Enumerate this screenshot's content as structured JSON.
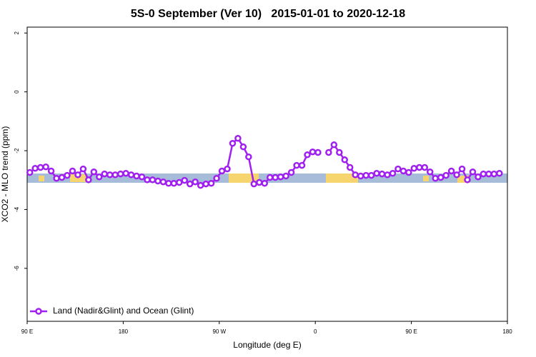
{
  "chart_data": {
    "type": "line",
    "title": "5S-0 September (Ver 10)   2015-01-01 to 2020-12-18",
    "x_label": "Longitude (deg E)",
    "y_label": "XCO2 - MLO trend (ppm)",
    "x": [
      92.5,
      97.5,
      102.5,
      107.5,
      112.5,
      117.5,
      122.5,
      127.5,
      132.5,
      137.5,
      142.5,
      147.5,
      152.5,
      157.5,
      162.5,
      167.5,
      172.5,
      177.5,
      182.5,
      187.5,
      192.5,
      197.5,
      202.5,
      207.5,
      212.5,
      217.5,
      222.5,
      227.5,
      232.5,
      237.5,
      242.5,
      247.5,
      252.5,
      257.5,
      262.5,
      267.5,
      272.5,
      277.5,
      282.5,
      287.5,
      292.5,
      297.5,
      302.5,
      307.5,
      312.5,
      317.5,
      322.5,
      327.5,
      332.5,
      337.5,
      342.5,
      347.5,
      352.5,
      357.5,
      362.5,
      367.5,
      372.5,
      377.5,
      382.5,
      387.5,
      392.5,
      397.5,
      402.5,
      407.5,
      412.5,
      417.5,
      422.5,
      427.5,
      432.5,
      437.5,
      442.5,
      447.5,
      452.5,
      457.5,
      462.5,
      467.5,
      472.5,
      477.5,
      482.5,
      487.5,
      492.5,
      497.5,
      502.5,
      507.5,
      512.5,
      517.5,
      522.5,
      527.5,
      532.5
    ],
    "series": [
      {
        "name": "Land (Nadir&Glint) and Ocean (Glint)",
        "color": "#a020f0",
        "values": [
          -2.74,
          -2.6,
          -2.57,
          -2.55,
          -2.69,
          -2.94,
          -2.91,
          -2.84,
          -2.69,
          -2.82,
          -2.62,
          -2.99,
          -2.72,
          -2.89,
          -2.79,
          -2.82,
          -2.82,
          -2.79,
          -2.77,
          -2.82,
          -2.86,
          -2.89,
          -2.99,
          -2.99,
          -3.03,
          -3.06,
          -3.11,
          -3.11,
          -3.08,
          -3.01,
          -3.13,
          -3.06,
          -3.18,
          -3.13,
          -3.11,
          -2.94,
          -2.69,
          -2.62,
          -1.75,
          -1.58,
          -1.87,
          -2.21,
          -3.13,
          -3.08,
          -3.11,
          -2.91,
          -2.91,
          -2.89,
          -2.86,
          -2.74,
          -2.5,
          -2.5,
          -2.14,
          -2.04,
          -2.06,
          null,
          -2.06,
          -1.8,
          -2.06,
          -2.31,
          -2.57,
          -2.82,
          -2.86,
          -2.84,
          -2.84,
          -2.77,
          -2.79,
          -2.82,
          -2.77,
          -2.62,
          -2.69,
          -2.74,
          -2.6,
          -2.57,
          -2.57,
          -2.72,
          -2.94,
          -2.91,
          -2.84,
          -2.69,
          -2.82,
          -2.62,
          -2.99,
          -2.72,
          -2.89,
          -2.79,
          -2.79,
          -2.79,
          -2.77
        ]
      }
    ],
    "xlim": [
      90,
      540
    ],
    "ylim": [
      -7.8,
      2.2
    ],
    "xticks": [
      {
        "value": 90,
        "label": "90 E"
      },
      {
        "value": 180,
        "label": "180"
      },
      {
        "value": 270,
        "label": "90 W"
      },
      {
        "value": 360,
        "label": "0"
      },
      {
        "value": 450,
        "label": "90 E"
      },
      {
        "value": 540,
        "label": "180"
      }
    ],
    "yticks": [
      2,
      0,
      -2,
      -4,
      -6
    ],
    "legend": "bottom-left"
  }
}
